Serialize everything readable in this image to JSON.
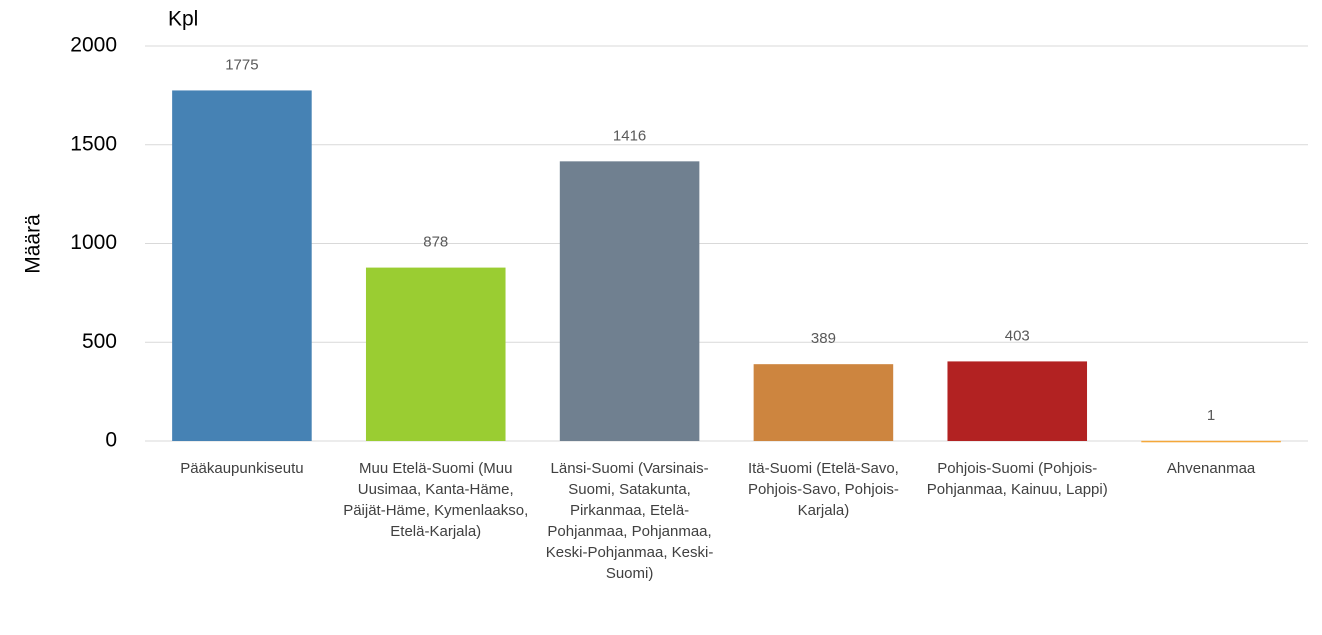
{
  "chart_data": {
    "type": "bar",
    "y_axis_label": "Määrä",
    "unit_label": "Kpl",
    "categories": [
      "Pääkaupunkiseutu",
      "Muu Etelä-Suomi (Muu Uusimaa, Kanta-Häme, Päijät-Häme, Kymenlaakso, Etelä-Karjala)",
      "Länsi-Suomi (Varsinais-Suomi, Satakunta, Pirkanmaa, Etelä-Pohjanmaa, Pohjanmaa, Keski-Pohjanmaa, Keski-Suomi)",
      "Itä-Suomi (Etelä-Savo, Pohjois-Savo, Pohjois-Karjala)",
      "Pohjois-Suomi (Pohjois-Pohjanmaa, Kainuu, Lappi)",
      "Ahvenanmaa"
    ],
    "values": [
      1775,
      878,
      1416,
      389,
      403,
      1
    ],
    "colors": [
      "#4682b4",
      "#9acd32",
      "#708090",
      "#cd853f",
      "#b22222",
      "#f4a83a"
    ],
    "ylim": [
      0,
      2000
    ],
    "yticks": [
      0,
      500,
      1000,
      1500,
      2000
    ],
    "grid": true
  }
}
